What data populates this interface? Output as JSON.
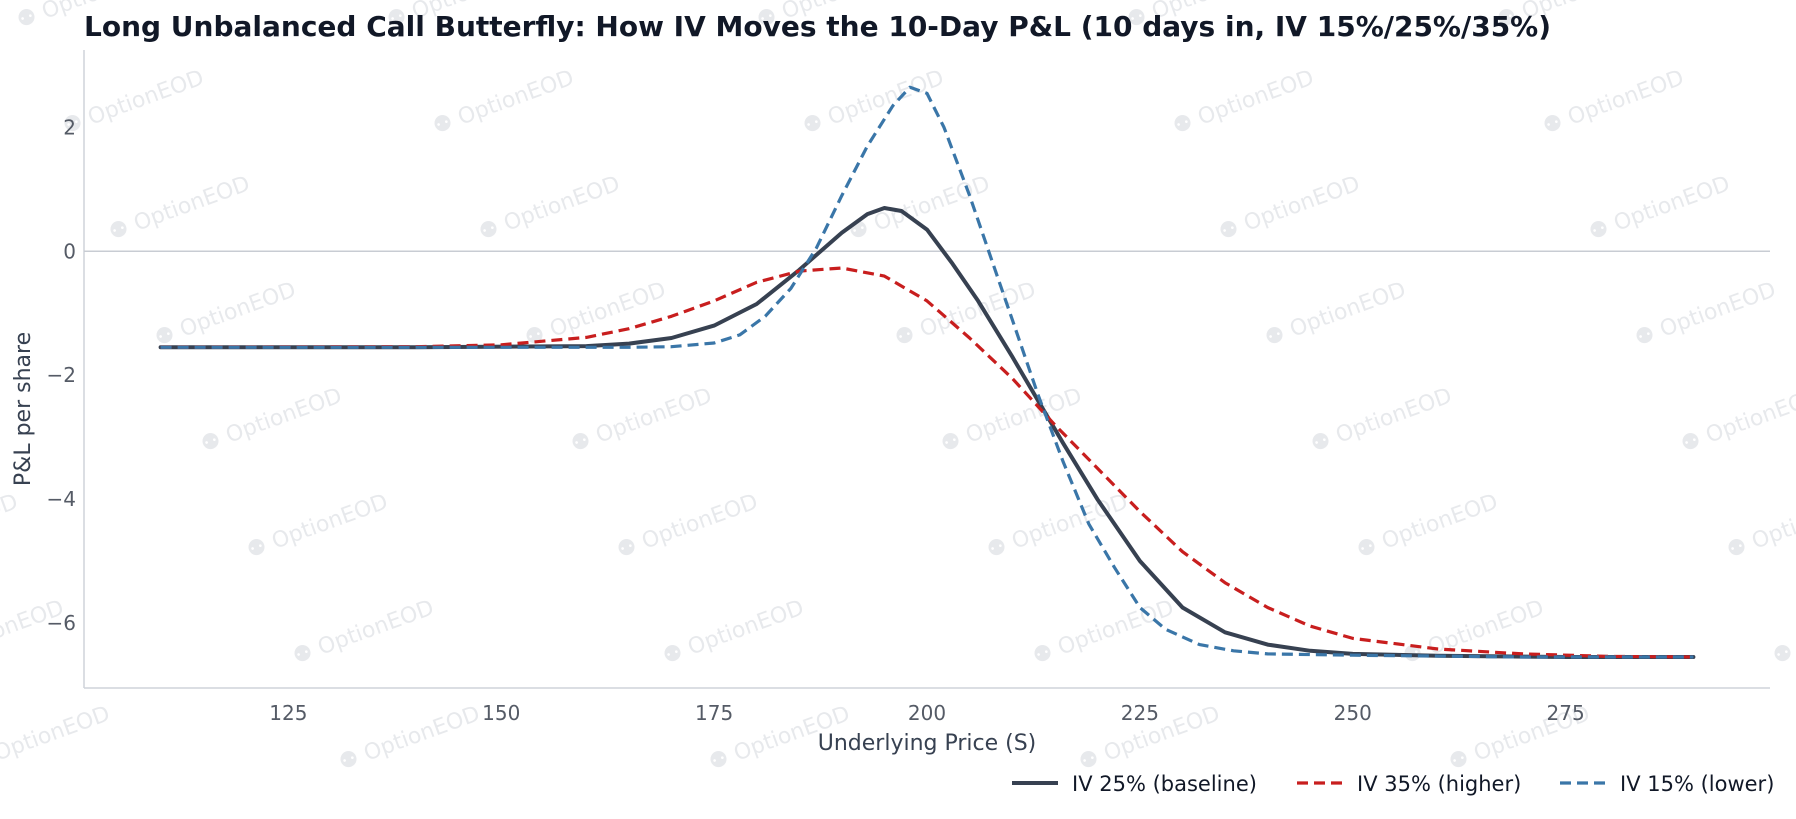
{
  "chart_data": {
    "type": "line",
    "title": "Long Unbalanced Call Butterfly: How IV Moves the 10-Day P&L (10 days in, IV 15%/25%/35%)",
    "xlabel": "Underlying Price (S)",
    "ylabel": "P&L per share",
    "xlim": [
      101,
      299
    ],
    "ylim": [
      -7.05,
      3.25
    ],
    "xticks": [
      125,
      150,
      175,
      200,
      225,
      250,
      275
    ],
    "yticks": [
      -6,
      -4,
      -2,
      0,
      2
    ],
    "zero_line": true,
    "grid": false,
    "legend_position": "bottom-right",
    "watermark": "OptionEOD",
    "series": [
      {
        "name": "IV 25% (baseline)",
        "color": "#374151",
        "dash": "solid",
        "x": [
          110,
          140,
          160,
          165,
          170,
          175,
          180,
          185,
          190,
          193,
          195,
          197,
          200,
          203,
          206,
          210,
          213,
          216,
          220,
          225,
          230,
          235,
          240,
          245,
          250,
          260,
          275,
          290
        ],
        "y": [
          -1.55,
          -1.55,
          -1.53,
          -1.49,
          -1.4,
          -1.2,
          -0.85,
          -0.3,
          0.3,
          0.6,
          0.7,
          0.65,
          0.35,
          -0.2,
          -0.8,
          -1.7,
          -2.4,
          -3.1,
          -4.0,
          -5.0,
          -5.75,
          -6.15,
          -6.35,
          -6.45,
          -6.5,
          -6.53,
          -6.55,
          -6.55
        ]
      },
      {
        "name": "IV 35% (higher)",
        "color": "#c81e1e",
        "dash": "dashed",
        "x": [
          110,
          140,
          150,
          160,
          165,
          170,
          175,
          180,
          185,
          190,
          195,
          200,
          205,
          210,
          215,
          220,
          225,
          230,
          235,
          240,
          245,
          250,
          260,
          270,
          280,
          290
        ],
        "y": [
          -1.55,
          -1.54,
          -1.51,
          -1.39,
          -1.25,
          -1.05,
          -0.8,
          -0.5,
          -0.32,
          -0.27,
          -0.4,
          -0.8,
          -1.4,
          -2.05,
          -2.8,
          -3.5,
          -4.2,
          -4.85,
          -5.35,
          -5.75,
          -6.05,
          -6.25,
          -6.42,
          -6.5,
          -6.54,
          -6.55
        ]
      },
      {
        "name": "IV 15% (lower)",
        "color": "#3a76a8",
        "dash": "dashed",
        "x": [
          110,
          150,
          165,
          170,
          175,
          178,
          181,
          184,
          187,
          190,
          193,
          196,
          198,
          200,
          202,
          205,
          208,
          210,
          213,
          216,
          219,
          222,
          225,
          228,
          232,
          236,
          240,
          250,
          270,
          290
        ],
        "y": [
          -1.55,
          -1.55,
          -1.55,
          -1.54,
          -1.48,
          -1.35,
          -1.05,
          -0.6,
          0.05,
          0.9,
          1.7,
          2.35,
          2.65,
          2.55,
          2.0,
          0.9,
          -0.3,
          -1.1,
          -2.3,
          -3.4,
          -4.4,
          -5.1,
          -5.75,
          -6.1,
          -6.35,
          -6.45,
          -6.5,
          -6.52,
          -6.55,
          -6.55
        ]
      }
    ]
  }
}
